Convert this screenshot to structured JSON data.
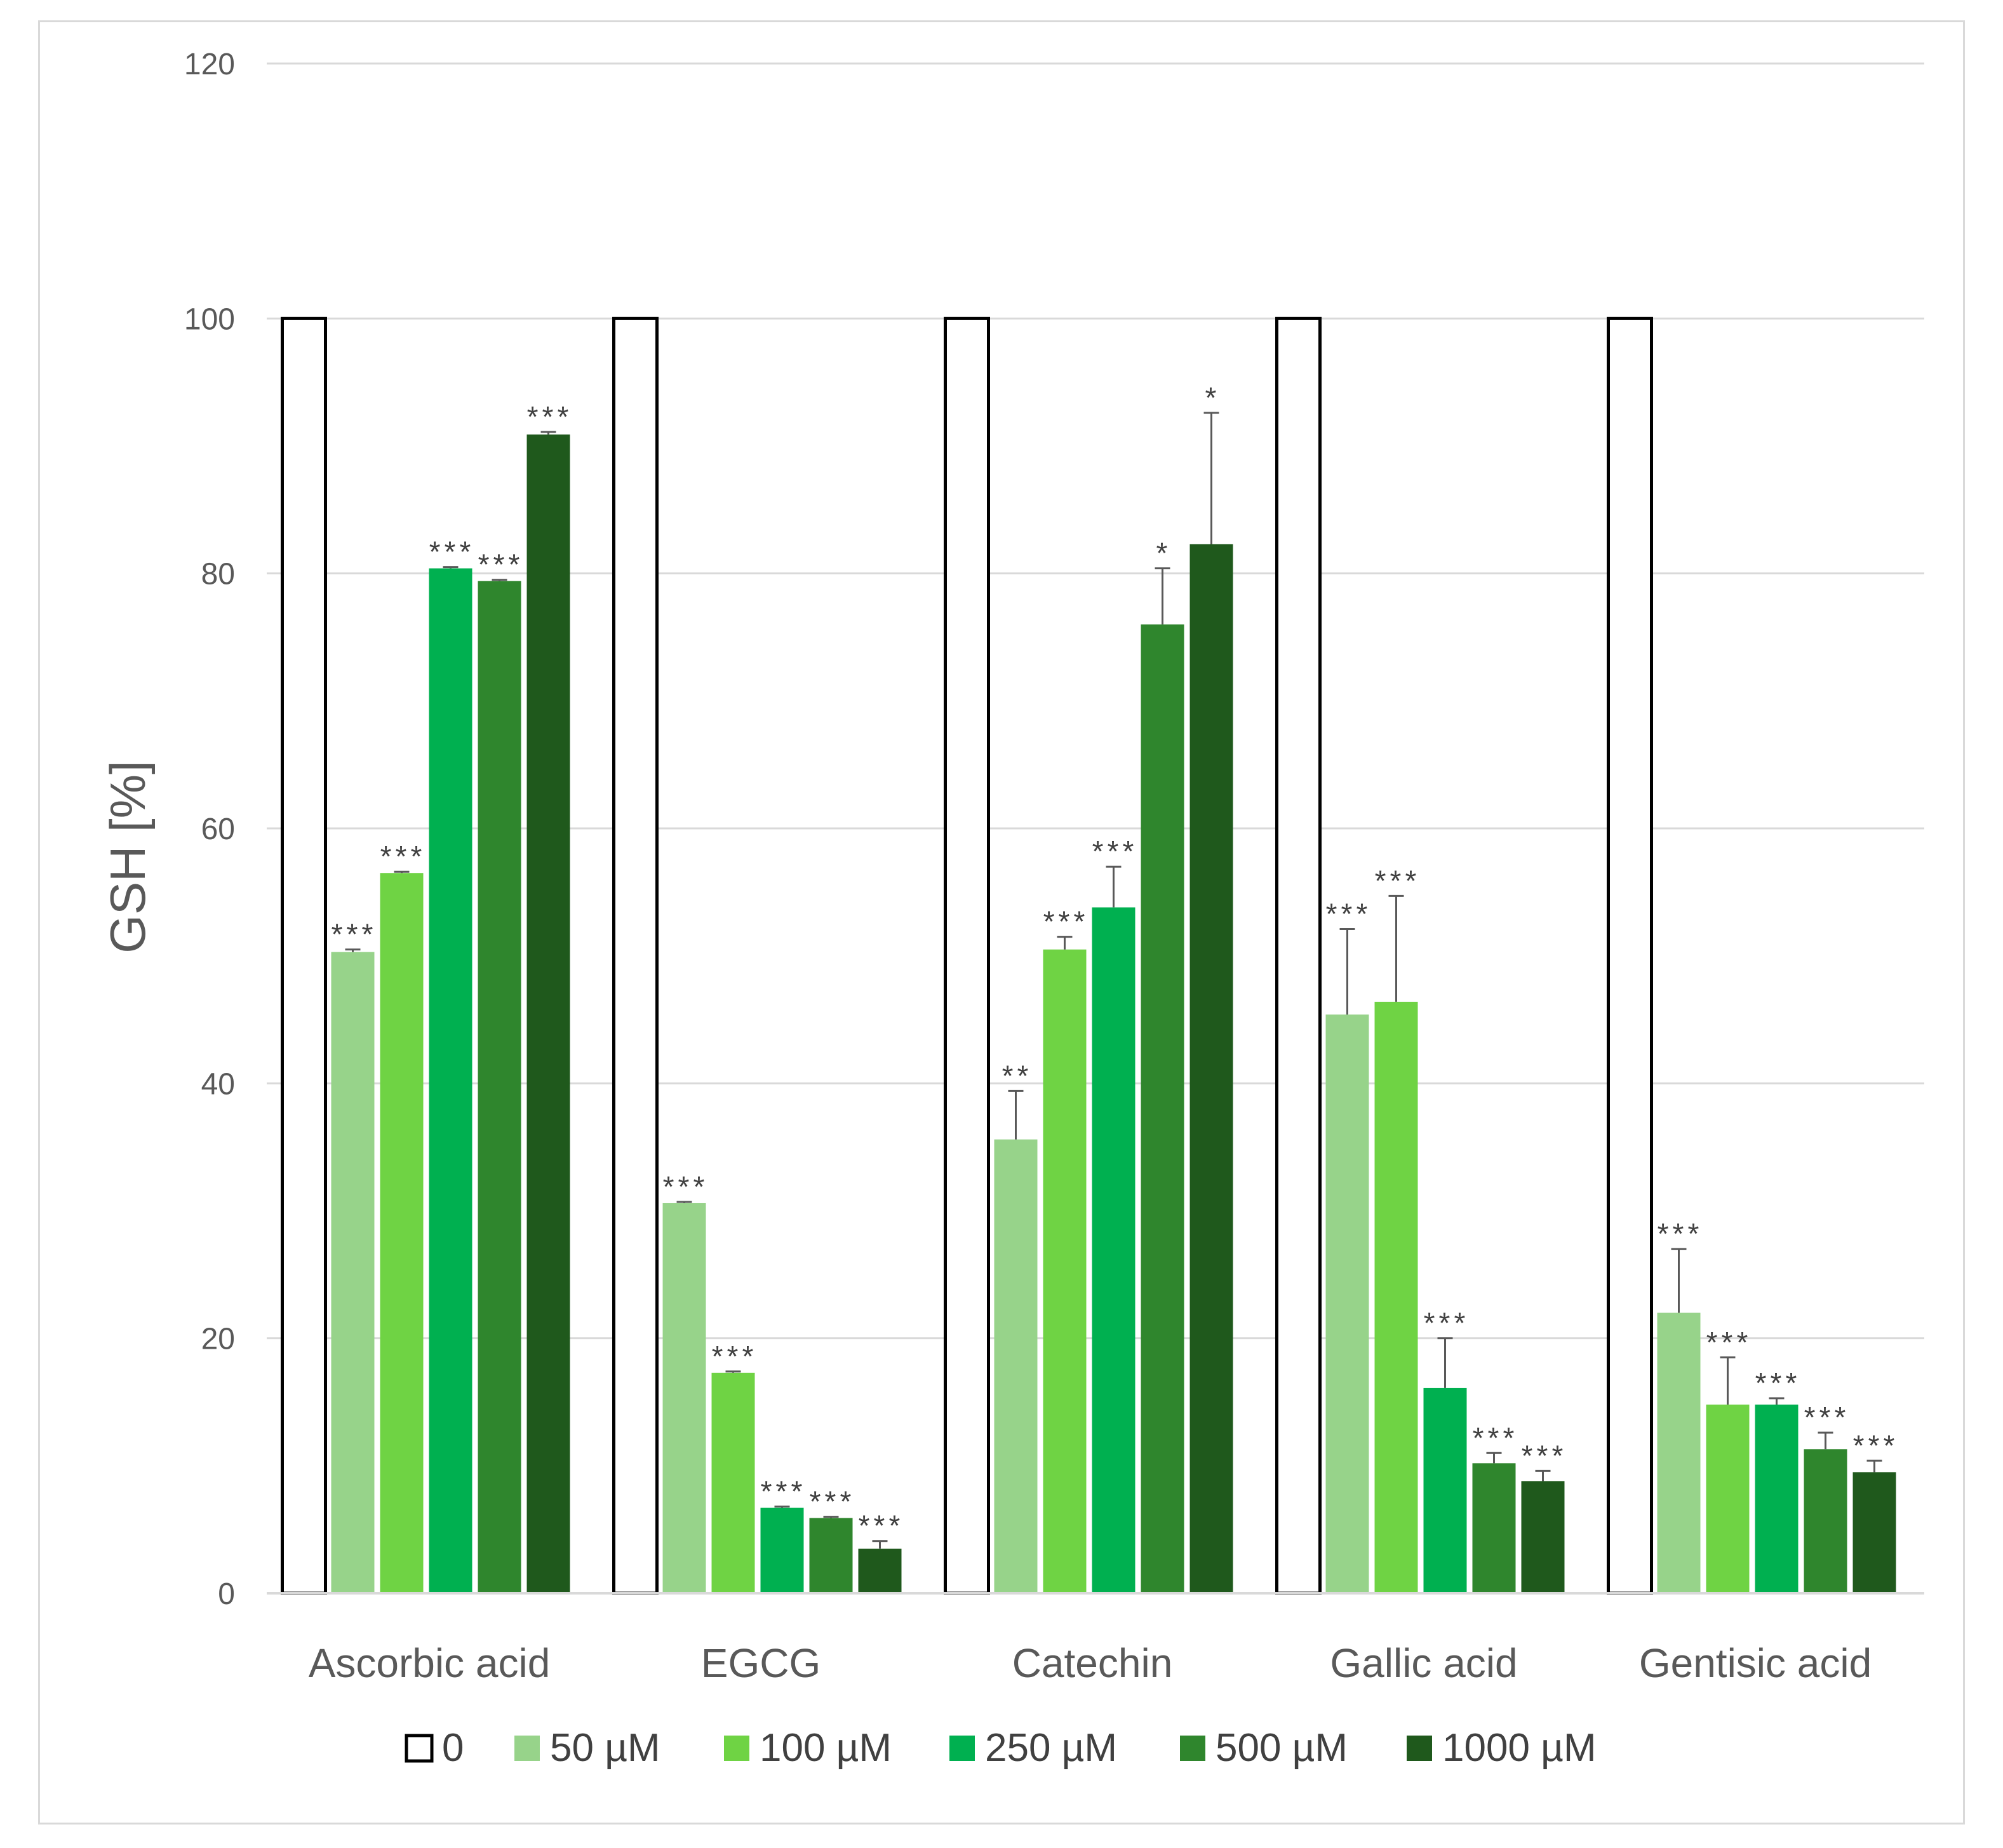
{
  "chart_data": {
    "type": "bar",
    "title": "",
    "xlabel": "",
    "ylabel": "GSH [%]",
    "ylim": [
      0,
      120
    ],
    "yticks": [
      0,
      20,
      40,
      60,
      80,
      100,
      120
    ],
    "grid": true,
    "legend_position": "bottom",
    "categories": [
      "Ascorbic acid",
      "EGCG",
      "Catechin",
      "Gallic acid",
      "Gentisic acid"
    ],
    "series": [
      {
        "name": "0",
        "color": "#ffffff",
        "outline": "#000000",
        "values": [
          100,
          100,
          100,
          100,
          100
        ],
        "errors": [
          0,
          0,
          0,
          0,
          0
        ],
        "significance": [
          "",
          "",
          "",
          "",
          ""
        ]
      },
      {
        "name": "50 µM",
        "color": "#97d38a",
        "values": [
          50.3,
          30.6,
          35.6,
          45.4,
          22.0
        ],
        "errors": [
          0.2,
          0.1,
          3.8,
          6.7,
          5.0
        ],
        "significance": [
          "***",
          "***",
          "**",
          "***",
          "***"
        ]
      },
      {
        "name": "100 µM",
        "color": "#6fd344",
        "values": [
          56.5,
          17.3,
          50.5,
          46.4,
          14.8
        ],
        "errors": [
          0.1,
          0.1,
          1.0,
          8.3,
          3.7
        ],
        "significance": [
          "***",
          "***",
          "***",
          "***",
          "***"
        ]
      },
      {
        "name": "250 µM",
        "color": "#00b050",
        "values": [
          80.4,
          6.7,
          53.8,
          16.1,
          14.8
        ],
        "errors": [
          0.1,
          0.1,
          3.2,
          3.9,
          0.5
        ],
        "significance": [
          "***",
          "***",
          "***",
          "***",
          "***"
        ]
      },
      {
        "name": "500 µM",
        "color": "#2f862d",
        "values": [
          79.4,
          5.9,
          76.0,
          10.2,
          11.3
        ],
        "errors": [
          0.1,
          0.1,
          4.4,
          0.8,
          1.3
        ],
        "significance": [
          "***",
          "***",
          "*",
          "***",
          "***"
        ]
      },
      {
        "name": "1000 µM",
        "color": "#1f591c",
        "values": [
          90.9,
          3.5,
          82.3,
          8.8,
          9.5
        ],
        "errors": [
          0.2,
          0.6,
          10.3,
          0.8,
          0.9
        ],
        "significance": [
          "***",
          "***",
          "*",
          "***",
          "***"
        ]
      }
    ]
  }
}
